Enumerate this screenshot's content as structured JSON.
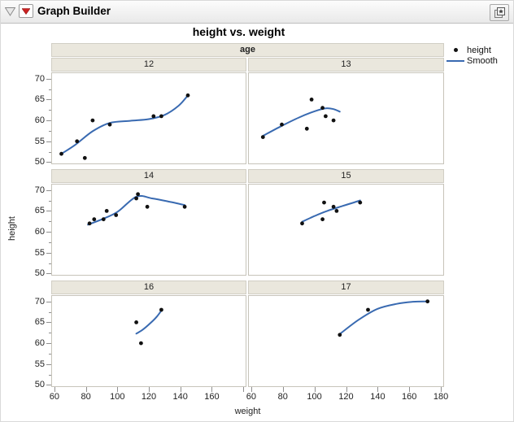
{
  "window": {
    "title": "Graph Builder"
  },
  "chart": {
    "title": "height vs. weight",
    "facet_label": "age",
    "xlabel": "weight",
    "ylabel": "height",
    "legend_point_label": "height",
    "legend_smooth_label": "Smooth"
  },
  "colors": {
    "smooth_line": "#396ab1",
    "point": "#111111",
    "header_bg": "#eae7dd",
    "panel_border": "#c7c4ba",
    "tick": "#8f8f8f"
  },
  "chart_data": {
    "type": "scatter",
    "title": "height vs. weight",
    "xlabel": "weight",
    "ylabel": "height",
    "facet_by": "age",
    "grid": false,
    "legend_position": "right",
    "legend": [
      {
        "marker": "point",
        "label": "height"
      },
      {
        "marker": "line",
        "label": "Smooth"
      }
    ],
    "x_range": [
      58,
      182
    ],
    "y_range": [
      49.5,
      71.5
    ],
    "y_ticks": [
      70,
      65,
      60,
      55,
      50
    ],
    "y_minor_ticks": [
      67.5,
      62.5,
      57.5,
      52.5
    ],
    "x_major_ticks": [
      60,
      80,
      100,
      120,
      140,
      160,
      180
    ],
    "x_tick_labels_left_column": [
      60,
      80,
      100,
      120,
      140,
      160
    ],
    "x_tick_labels_right_column": [
      60,
      80,
      100,
      120,
      140,
      160,
      180
    ],
    "facets": [
      {
        "age": "12",
        "points": [
          [
            64,
            52
          ],
          [
            74,
            55
          ],
          [
            79,
            51
          ],
          [
            84,
            60
          ],
          [
            95,
            59
          ],
          [
            123,
            61
          ],
          [
            128,
            61
          ],
          [
            145,
            66
          ]
        ],
        "smooth": [
          [
            64,
            52
          ],
          [
            73,
            54.2
          ],
          [
            84,
            57.4
          ],
          [
            95,
            59.4
          ],
          [
            108,
            59.9
          ],
          [
            120,
            60.3
          ],
          [
            130,
            61.3
          ],
          [
            139,
            63.5
          ],
          [
            145,
            66
          ]
        ]
      },
      {
        "age": "13",
        "points": [
          [
            67,
            56
          ],
          [
            79,
            59
          ],
          [
            95,
            58
          ],
          [
            98,
            65
          ],
          [
            105,
            63
          ],
          [
            107,
            61
          ],
          [
            112,
            60
          ]
        ],
        "smooth": [
          [
            67,
            56.3
          ],
          [
            78,
            58.5
          ],
          [
            90,
            60.7
          ],
          [
            100,
            62.2
          ],
          [
            107,
            62.9
          ],
          [
            112,
            62.7
          ],
          [
            116,
            62.1
          ]
        ]
      },
      {
        "age": "14",
        "points": [
          [
            82,
            62
          ],
          [
            85,
            63
          ],
          [
            91,
            63
          ],
          [
            93,
            65
          ],
          [
            99,
            64
          ],
          [
            112,
            68
          ],
          [
            113,
            69
          ],
          [
            119,
            66
          ],
          [
            143,
            66
          ]
        ],
        "smooth": [
          [
            81,
            61.7
          ],
          [
            90,
            63
          ],
          [
            100,
            64.8
          ],
          [
            112,
            68.4
          ],
          [
            122,
            68
          ],
          [
            132,
            67.3
          ],
          [
            143,
            66.4
          ]
        ]
      },
      {
        "age": "15",
        "points": [
          [
            92,
            62
          ],
          [
            105,
            63
          ],
          [
            106,
            67
          ],
          [
            112,
            66
          ],
          [
            114,
            65
          ],
          [
            129,
            67
          ]
        ],
        "smooth": [
          [
            92,
            62.4
          ],
          [
            100,
            63.8
          ],
          [
            108,
            65
          ],
          [
            118,
            66.2
          ],
          [
            129,
            67.5
          ]
        ]
      },
      {
        "age": "16",
        "points": [
          [
            112,
            65
          ],
          [
            115,
            60
          ],
          [
            128,
            68
          ]
        ],
        "smooth": [
          [
            112,
            62.3
          ],
          [
            116,
            63.2
          ],
          [
            121,
            64.8
          ],
          [
            125,
            66.3
          ],
          [
            128,
            67.8
          ]
        ]
      },
      {
        "age": "17",
        "points": [
          [
            116,
            62
          ],
          [
            134,
            68
          ],
          [
            172,
            70
          ]
        ],
        "smooth": [
          [
            116,
            62.2
          ],
          [
            128,
            65.6
          ],
          [
            140,
            68.2
          ],
          [
            152,
            69.4
          ],
          [
            162,
            69.9
          ],
          [
            172,
            70
          ]
        ]
      }
    ]
  }
}
